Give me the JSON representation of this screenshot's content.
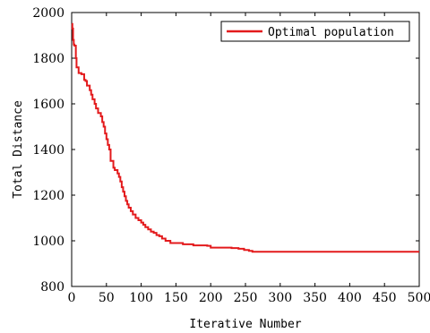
{
  "chart_data": {
    "type": "line",
    "xlabel": "Iterative Number",
    "ylabel": "Total Distance",
    "xlim": [
      0,
      500
    ],
    "ylim": [
      800,
      2000
    ],
    "x_ticks": [
      0,
      50,
      100,
      150,
      200,
      250,
      300,
      350,
      400,
      450,
      500
    ],
    "y_ticks": [
      800,
      1000,
      1200,
      1400,
      1600,
      1800,
      2000
    ],
    "grid": false,
    "legend_position": "top-right",
    "series": [
      {
        "name": "Optimal population",
        "color": "#e31a1c",
        "step": true,
        "points": [
          [
            0,
            1950
          ],
          [
            1,
            1930
          ],
          [
            2,
            1880
          ],
          [
            3,
            1860
          ],
          [
            4,
            1855
          ],
          [
            6,
            1800
          ],
          [
            7,
            1760
          ],
          [
            10,
            1735
          ],
          [
            14,
            1730
          ],
          [
            18,
            1705
          ],
          [
            20,
            1700
          ],
          [
            22,
            1680
          ],
          [
            26,
            1660
          ],
          [
            28,
            1640
          ],
          [
            30,
            1620
          ],
          [
            33,
            1600
          ],
          [
            35,
            1580
          ],
          [
            38,
            1560
          ],
          [
            42,
            1545
          ],
          [
            44,
            1520
          ],
          [
            46,
            1500
          ],
          [
            48,
            1470
          ],
          [
            50,
            1445
          ],
          [
            52,
            1420
          ],
          [
            54,
            1400
          ],
          [
            56,
            1350
          ],
          [
            60,
            1320
          ],
          [
            62,
            1310
          ],
          [
            66,
            1295
          ],
          [
            68,
            1280
          ],
          [
            70,
            1260
          ],
          [
            72,
            1235
          ],
          [
            74,
            1215
          ],
          [
            76,
            1195
          ],
          [
            78,
            1175
          ],
          [
            80,
            1160
          ],
          [
            82,
            1145
          ],
          [
            85,
            1130
          ],
          [
            88,
            1115
          ],
          [
            92,
            1100
          ],
          [
            96,
            1090
          ],
          [
            100,
            1080
          ],
          [
            103,
            1070
          ],
          [
            106,
            1060
          ],
          [
            110,
            1050
          ],
          [
            114,
            1040
          ],
          [
            118,
            1035
          ],
          [
            122,
            1025
          ],
          [
            126,
            1020
          ],
          [
            130,
            1010
          ],
          [
            135,
            1000
          ],
          [
            142,
            990
          ],
          [
            160,
            985
          ],
          [
            175,
            980
          ],
          [
            195,
            978
          ],
          [
            200,
            970
          ],
          [
            230,
            968
          ],
          [
            240,
            965
          ],
          [
            248,
            960
          ],
          [
            255,
            956
          ],
          [
            260,
            952
          ],
          [
            500,
            952
          ]
        ]
      }
    ]
  }
}
